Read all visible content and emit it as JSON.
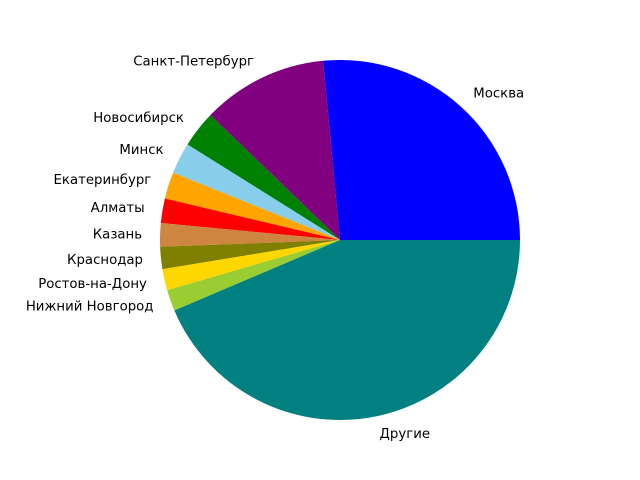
{
  "chart_data": {
    "type": "pie",
    "title": "",
    "start_angle_deg": 0,
    "direction": "counterclockwise",
    "slices": [
      {
        "label": "Москва",
        "value": 26.5,
        "color": "#0000ff"
      },
      {
        "label": "Санкт-Петербург",
        "value": 11.3,
        "color": "#800080"
      },
      {
        "label": "Новосибирск",
        "value": 3.3,
        "color": "#008000"
      },
      {
        "label": "Минск",
        "value": 2.8,
        "color": "#87ceeb"
      },
      {
        "label": "Екатеринбург",
        "value": 2.4,
        "color": "#ffa500"
      },
      {
        "label": "Алматы",
        "value": 2.2,
        "color": "#ff0000"
      },
      {
        "label": "Казань",
        "value": 2.1,
        "color": "#cd853f"
      },
      {
        "label": "Краснодар",
        "value": 2.0,
        "color": "#808000"
      },
      {
        "label": "Ростов-на-Дону",
        "value": 1.9,
        "color": "#ffd700"
      },
      {
        "label": "Нижний Новгород",
        "value": 1.9,
        "color": "#9acd32"
      },
      {
        "label": "Другие",
        "value": 43.6,
        "color": "#008080"
      }
    ]
  }
}
